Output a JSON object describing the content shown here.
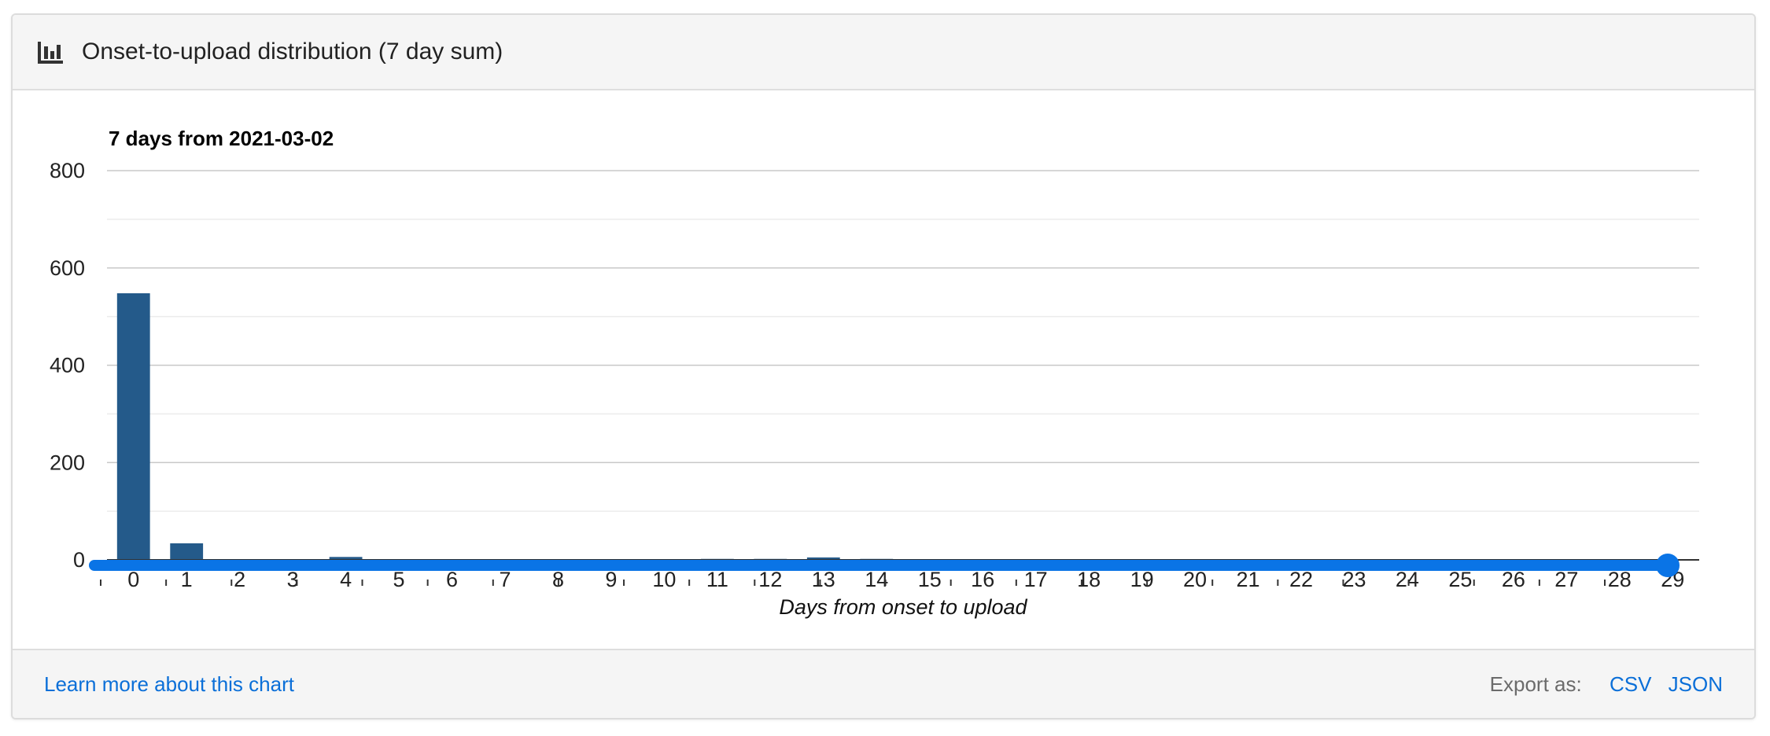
{
  "header": {
    "title": "Onset-to-upload distribution (7 day sum)",
    "icon": "bar-chart-icon"
  },
  "footer": {
    "learn_more": "Learn more about this chart",
    "export_label": "Export as:",
    "export_csv": "CSV",
    "export_json": "JSON"
  },
  "colors": {
    "bar": "#245a8a",
    "slider": "#0a74e6",
    "link": "#0b6fd8"
  },
  "slider": {
    "selected_index": 29,
    "tick_count": 24
  },
  "chart_data": {
    "type": "bar",
    "title": "7 days from 2021-03-02",
    "xlabel": "Days from onset to upload",
    "ylabel": "",
    "ylim": [
      0,
      800
    ],
    "yticks": [
      0,
      200,
      400,
      600,
      800
    ],
    "grid": true,
    "categories": [
      "0",
      "1",
      "2",
      "3",
      "4",
      "5",
      "6",
      "7",
      "8",
      "9",
      "10",
      "11",
      "12",
      "13",
      "14",
      "15",
      "16",
      "17",
      "18",
      "19",
      "20",
      "21",
      "22",
      "23",
      "24",
      "25",
      "26",
      "27",
      "28",
      "29"
    ],
    "values": [
      548,
      34,
      1,
      1,
      6,
      1,
      1,
      1,
      1,
      1,
      1,
      2,
      2,
      5,
      2,
      1,
      1,
      0,
      0,
      0,
      0,
      0,
      0,
      0,
      0,
      0,
      0,
      0,
      0,
      0
    ]
  }
}
